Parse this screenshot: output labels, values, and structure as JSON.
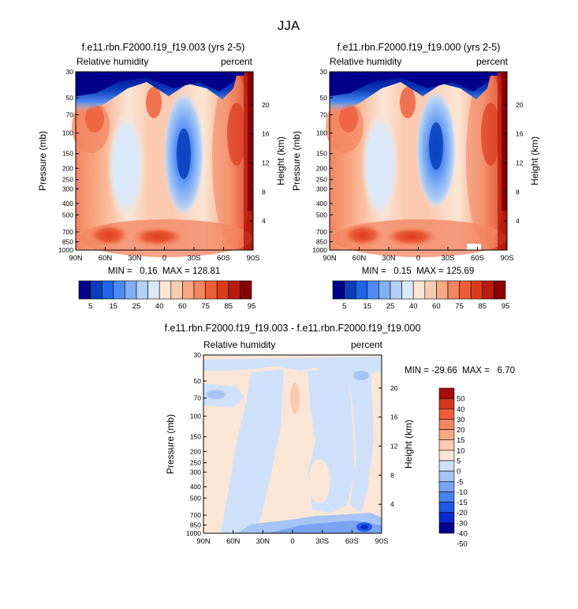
{
  "figure_title": "JJA",
  "colors": {
    "rh_palette": [
      "#00008b",
      "#0a3dbc",
      "#1f63e6",
      "#4d8af2",
      "#82aff4",
      "#b4d0f6",
      "#dbe8fa",
      "#fbe6d6",
      "#fbcab0",
      "#f8a883",
      "#f38461",
      "#ec5d3a",
      "#db3b1e",
      "#b81c0f",
      "#8b0000"
    ],
    "diff_palette": [
      "#00008b",
      "#0a2ad0",
      "#1f5ae6",
      "#4a82ee",
      "#7aa4f2",
      "#a6c4f6",
      "#cfe0fa",
      "#fbe6d6",
      "#fbcab0",
      "#f8a883",
      "#f38461",
      "#ec5d3a",
      "#d6371b",
      "#a80e0e"
    ]
  },
  "chart_data": [
    {
      "type": "heatmap",
      "name": "panel-left",
      "title": "f.e11.rbn.F2000.f19_f19.003 (yrs 2-5)",
      "variable_label": "Relative humidity",
      "units_label": "percent",
      "ylabel": "Pressure (mb)",
      "ylabel_right": "Height (km)",
      "x_ticks": [
        "90N",
        "60N",
        "30N",
        "0",
        "30S",
        "60S",
        "90S"
      ],
      "y_ticks": [
        30,
        50,
        70,
        100,
        150,
        200,
        250,
        300,
        400,
        500,
        700,
        850,
        1000
      ],
      "y_right_ticks": [
        20,
        16,
        12,
        8,
        4
      ],
      "ylim": [
        1000,
        30
      ],
      "xlim": [
        90,
        -90
      ],
      "stats_text": "MIN =   0.16  MAX = 128.81",
      "colorbar": {
        "orientation": "horizontal",
        "labels": [
          "5",
          "15",
          "25",
          "40",
          "60",
          "75",
          "85",
          "95"
        ]
      }
    },
    {
      "type": "heatmap",
      "name": "panel-right",
      "title": "f.e11.rbn.F2000.f19_f19.000 (yrs 2-5)",
      "variable_label": "Relative humidity",
      "units_label": "percent",
      "ylabel": "Pressure (mb)",
      "ylabel_right": "Height (km)",
      "x_ticks": [
        "90N",
        "60N",
        "30N",
        "0",
        "30S",
        "60S",
        "90S"
      ],
      "y_ticks": [
        30,
        50,
        70,
        100,
        150,
        200,
        250,
        300,
        400,
        500,
        700,
        850,
        1000
      ],
      "y_right_ticks": [
        20,
        16,
        12,
        8,
        4
      ],
      "ylim": [
        1000,
        30
      ],
      "xlim": [
        90,
        -90
      ],
      "stats_text": "MIN =   0.15  MAX = 125.69",
      "colorbar": {
        "orientation": "horizontal",
        "labels": [
          "5",
          "15",
          "25",
          "40",
          "60",
          "75",
          "85",
          "95"
        ]
      }
    },
    {
      "type": "heatmap",
      "name": "panel-diff",
      "title": "f.e11.rbn.F2000.f19_f19.003 - f.e11.rbn.F2000.f19_f19.000",
      "variable_label": "Relative humidity",
      "units_label": "percent",
      "ylabel": "Pressure (mb)",
      "ylabel_right": "Height (km)",
      "x_ticks": [
        "90N",
        "60N",
        "30N",
        "0",
        "30S",
        "60S",
        "90S"
      ],
      "y_ticks": [
        30,
        50,
        70,
        100,
        150,
        200,
        250,
        300,
        400,
        500,
        700,
        850,
        1000
      ],
      "y_right_ticks": [
        20,
        16,
        12,
        8,
        4
      ],
      "ylim": [
        1000,
        30
      ],
      "xlim": [
        90,
        -90
      ],
      "stats_text": "MIN = -29.66  MAX =   6.70",
      "colorbar": {
        "orientation": "vertical",
        "labels": [
          "50",
          "40",
          "30",
          "20",
          "15",
          "10",
          "5",
          "0",
          "-5",
          "-10",
          "-15",
          "-20",
          "-30",
          "-40",
          "-50"
        ]
      }
    }
  ]
}
